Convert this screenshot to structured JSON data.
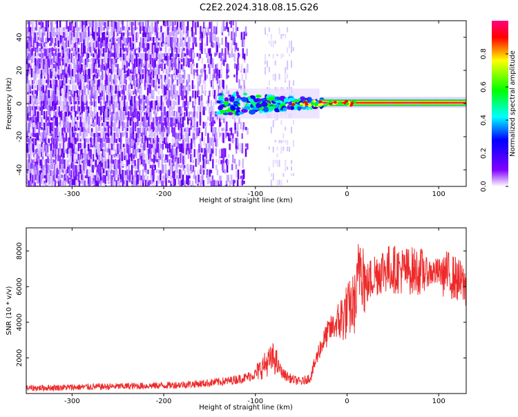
{
  "title": "C2E2.2024.318.08.15.G26",
  "chart_data": [
    {
      "type": "heatmap",
      "xlabel": "Height of straight line (km)",
      "ylabel": "Frequency (Hz)",
      "xlim": [
        -350,
        130
      ],
      "ylim": [
        -50,
        50
      ],
      "xticks": [
        -300,
        -200,
        -100,
        0,
        100
      ],
      "yticks": [
        -40,
        -20,
        0,
        20,
        40
      ],
      "colorbar": {
        "label": "Normalized spectral amplitude",
        "range": [
          0.0,
          1.0
        ],
        "ticks": [
          0.0,
          0.2,
          0.4,
          0.6,
          0.8
        ],
        "colormap": [
          "#ffffff",
          "#8000ff",
          "#0000ff",
          "#00ffff",
          "#00ff00",
          "#ffff00",
          "#ff0000",
          "#ff0080"
        ]
      },
      "regions": [
        {
          "x": [
            -350,
            -120
          ],
          "freq": [
            -50,
            50
          ],
          "amplitude": "0.1-0.3 (noise)"
        },
        {
          "x": [
            -90,
            -60
          ],
          "freq": [
            -50,
            50
          ],
          "amplitude": "0.05-0.15 (noise)"
        },
        {
          "x": [
            -140,
            -30
          ],
          "freq": [
            -8,
            8
          ],
          "amplitude": "0.3-0.8"
        },
        {
          "x": [
            -30,
            130
          ],
          "freq": [
            -1,
            2
          ],
          "amplitude": "0.8-1.0"
        }
      ]
    },
    {
      "type": "line",
      "xlabel": "Height of straight line (km)",
      "ylabel": "SNR (10 * v/v)",
      "xlim": [
        -350,
        130
      ],
      "ylim": [
        0,
        9300
      ],
      "xticks": [
        -300,
        -200,
        -100,
        0,
        100
      ],
      "yticks": [
        2000,
        4000,
        6000,
        8000
      ],
      "color": "#ee2a2a",
      "series": [
        {
          "x": [
            -350,
            -300,
            -250,
            -200,
            -160,
            -130,
            -110,
            -100,
            -90,
            -80,
            -70,
            -60,
            -50,
            -40,
            -30,
            -20,
            -10,
            0,
            10,
            15,
            20,
            30,
            40,
            50,
            60,
            70,
            80,
            90,
            100,
            110,
            120,
            130
          ],
          "values": [
            300,
            350,
            400,
            450,
            550,
            700,
            900,
            1100,
            1600,
            2000,
            1100,
            800,
            650,
            900,
            2500,
            3500,
            4000,
            4600,
            5200,
            8000,
            6000,
            6700,
            7000,
            7000,
            6900,
            6900,
            6850,
            6800,
            6800,
            6700,
            6400,
            6000
          ]
        }
      ]
    }
  ]
}
